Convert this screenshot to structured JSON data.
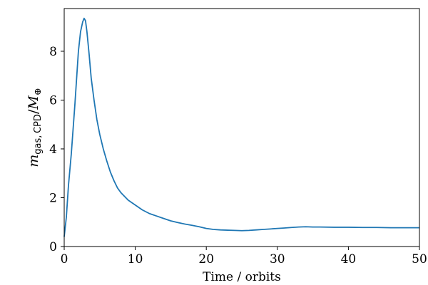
{
  "chart_data": {
    "type": "line",
    "xlabel": "Time / orbits",
    "ylabel": {
      "m": "m",
      "sub": "gas, CPD",
      "slash": "/",
      "M": "M",
      "msub": "⊕"
    },
    "xlim": [
      0,
      50
    ],
    "ylim": [
      0,
      9.75
    ],
    "xticks": [
      0,
      10,
      20,
      30,
      40,
      50
    ],
    "yticks": [
      0,
      2,
      4,
      6,
      8
    ],
    "grid": false,
    "line_color": "#1f77b4",
    "series": [
      {
        "x": [
          0,
          0.3,
          0.6,
          1.0,
          1.5,
          2.0,
          2.3,
          2.6,
          2.8,
          3.0,
          3.2,
          3.5,
          3.8,
          4.2,
          4.6,
          5.0,
          5.5,
          6.0,
          6.5,
          7.0,
          7.5,
          8.0,
          9.0,
          10.0,
          11.0,
          12.0,
          13.0,
          14.0,
          15.0,
          16.0,
          17.0,
          18.0,
          19.0,
          20.0,
          21.0,
          22.0,
          23.0,
          24.0,
          25.0,
          26.0,
          27.0,
          28.0,
          29.0,
          30.0,
          31.0,
          32.0,
          33.0,
          34.0,
          35.0,
          36.0,
          38.0,
          40.0,
          42.0,
          44.0,
          46.0,
          48.0,
          50.0
        ],
        "y": [
          0.4,
          1.2,
          2.5,
          3.8,
          5.8,
          8.0,
          8.8,
          9.2,
          9.35,
          9.25,
          8.8,
          7.9,
          6.9,
          6.0,
          5.2,
          4.6,
          4.0,
          3.5,
          3.05,
          2.7,
          2.4,
          2.2,
          1.9,
          1.7,
          1.5,
          1.35,
          1.25,
          1.15,
          1.05,
          0.98,
          0.92,
          0.87,
          0.81,
          0.74,
          0.7,
          0.68,
          0.67,
          0.66,
          0.65,
          0.66,
          0.68,
          0.7,
          0.72,
          0.74,
          0.76,
          0.78,
          0.8,
          0.81,
          0.8,
          0.8,
          0.79,
          0.79,
          0.78,
          0.78,
          0.77,
          0.77,
          0.77
        ]
      }
    ]
  }
}
